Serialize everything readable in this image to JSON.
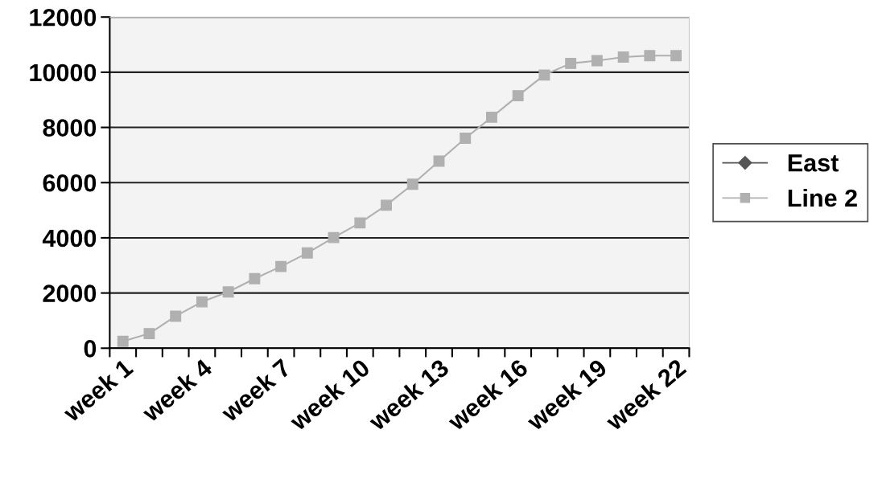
{
  "chart_data": {
    "type": "line",
    "categories": [
      "week 1",
      null,
      null,
      "week 4",
      null,
      null,
      "week 7",
      null,
      null,
      "week 10",
      null,
      null,
      "week 13",
      null,
      null,
      "week 16",
      null,
      null,
      "week 19",
      null,
      null,
      "week 22"
    ],
    "series": [
      {
        "name": "East",
        "color": "#555555",
        "marker": "diamond",
        "values": [
          null,
          null,
          null,
          null,
          null,
          null,
          null,
          null,
          null,
          null,
          null,
          null,
          null,
          null,
          null,
          null,
          null,
          null,
          null,
          null,
          null,
          null
        ]
      },
      {
        "name": "Line 2",
        "color": "#b0b0b0",
        "marker": "square",
        "values": [
          250,
          530,
          1160,
          1680,
          2040,
          2520,
          2960,
          3450,
          4010,
          4540,
          5180,
          5940,
          6780,
          7610,
          8370,
          9150,
          9900,
          10320,
          10420,
          10550,
          10600,
          10600
        ]
      }
    ],
    "ylim": [
      0,
      12000
    ],
    "yticks": [
      0,
      2000,
      4000,
      6000,
      8000,
      10000,
      12000
    ],
    "grid": "y",
    "legend": "right",
    "line_style": "solid"
  }
}
